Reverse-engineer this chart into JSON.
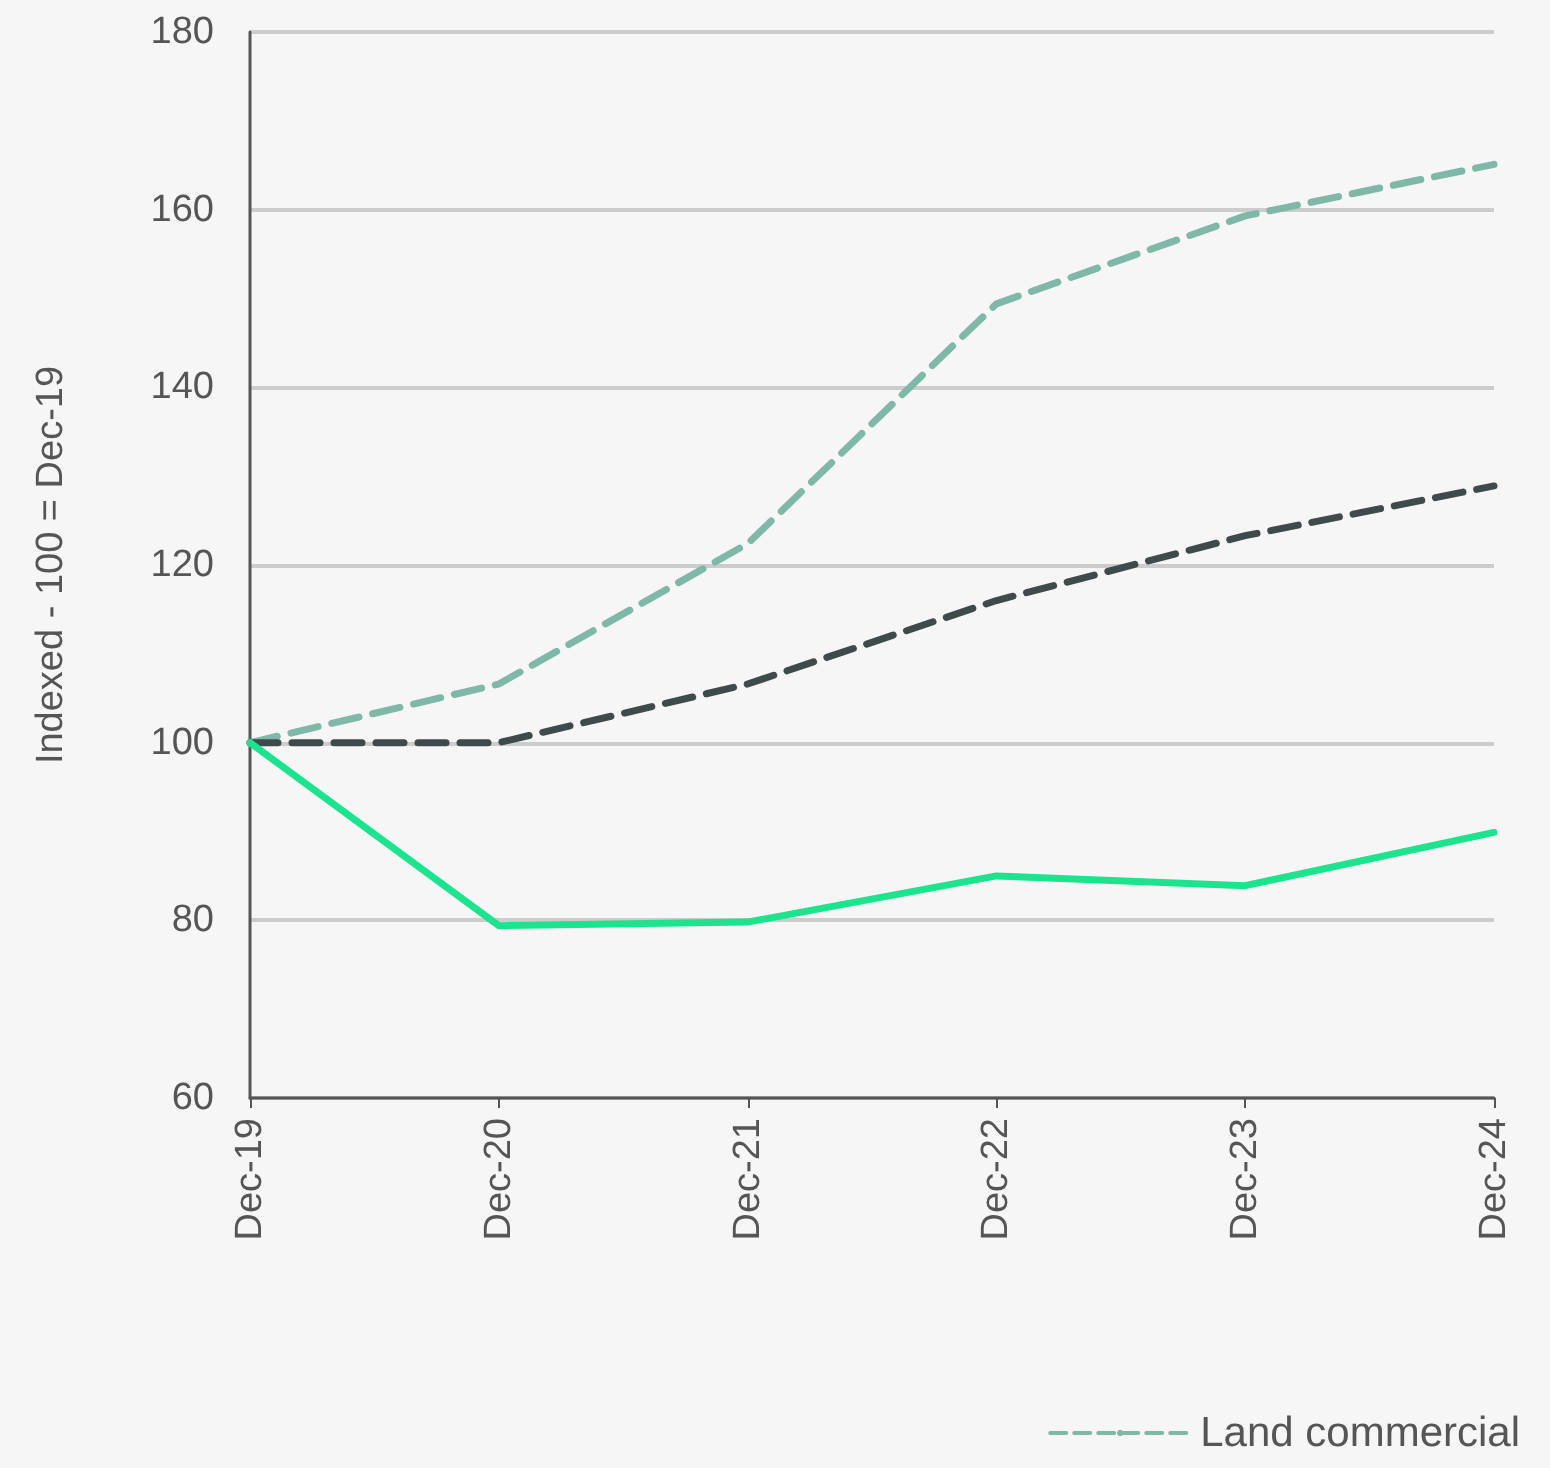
{
  "chart_data": {
    "type": "line",
    "ylabel": "Indexed - 100 = Dec-19",
    "categories": [
      "Dec-19",
      "Dec-20",
      "Dec-21",
      "Dec-22",
      "Dec-23",
      "Dec-24"
    ],
    "series": [
      {
        "name": "Land commercial",
        "color": "#80b8a8",
        "line_style": "dashed",
        "values": [
          100,
          106.6,
          122.4,
          149.4,
          159.3,
          165.1
        ]
      },
      {
        "color": "#3f4a4a",
        "line_style": "dashed",
        "values": [
          100,
          100,
          106.6,
          116,
          123.3,
          128.9
        ]
      },
      {
        "color": "#1de38f",
        "line_style": "solid",
        "values": [
          100,
          79.4,
          79.8,
          85,
          83.9,
          89.9
        ]
      }
    ],
    "ylim": [
      60,
      180
    ],
    "yticks": [
      60,
      80,
      100,
      120,
      140,
      160,
      180
    ],
    "grid": "y",
    "legend": "bottom right",
    "marker": "none"
  }
}
